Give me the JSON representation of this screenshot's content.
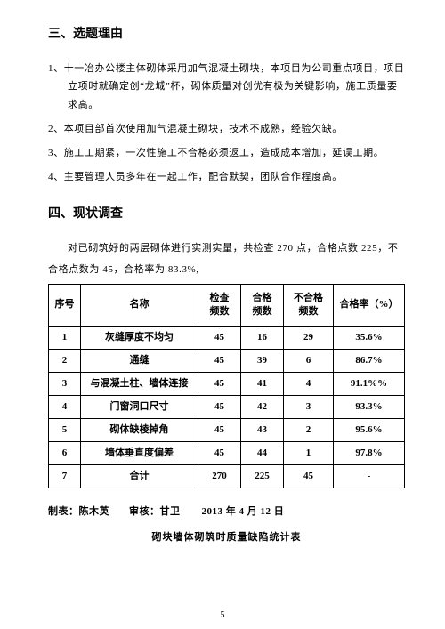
{
  "section3": {
    "title": "三、选题理由",
    "items": [
      {
        "no": "1、",
        "text": "十一冶办公楼主体砌体采用加气混凝土砌块，本项目为公司重点项目，项目立项时就确定创“龙城”杯，砌体质量对创优有极为关键影响，施工质量要求高。"
      },
      {
        "no": "2、",
        "text": "本项目部首次使用加气混凝土砌块，技术不成熟，经验欠缺。"
      },
      {
        "no": "3、",
        "text": "施工工期紧，一次性施工不合格必须返工，造成成本增加，延误工期。"
      },
      {
        "no": "4、",
        "text": "主要管理人员多年在一起工作，配合默契，团队合作程度高。"
      }
    ]
  },
  "section4": {
    "title": "四、现状调查",
    "intro": "对已砌筑好的两层砌体进行实测实量，共检查 270 点，合格点数 225，不合格点数为 45，合格率为 83.3%,"
  },
  "table": {
    "columns": [
      "序号",
      "名称",
      "检查\n频数",
      "合格\n频数",
      "不合格\n频数",
      "合格率（%）"
    ],
    "rows": [
      [
        "1",
        "灰缝厚度不均匀",
        "45",
        "16",
        "29",
        "35.6%"
      ],
      [
        "2",
        "通缝",
        "45",
        "39",
        "6",
        "86.7%"
      ],
      [
        "3",
        "与混凝土柱、墙体连接",
        "45",
        "41",
        "4",
        "91.1%%"
      ],
      [
        "4",
        "门窗洞口尺寸",
        "45",
        "42",
        "3",
        "93.3%"
      ],
      [
        "5",
        "砌体缺棱掉角",
        "45",
        "43",
        "2",
        "95.6%"
      ],
      [
        "6",
        "墙体垂直度偏差",
        "45",
        "44",
        "1",
        "97.8%"
      ],
      [
        "7",
        "合计",
        "270",
        "225",
        "45",
        "-"
      ]
    ],
    "title": "砌块墙体砌筑时质量缺陷统计表"
  },
  "sign": {
    "maker": "制表：陈木英",
    "checker": "审核：甘卫",
    "date": "2013 年 4 月 12 日"
  },
  "page_number": "5"
}
